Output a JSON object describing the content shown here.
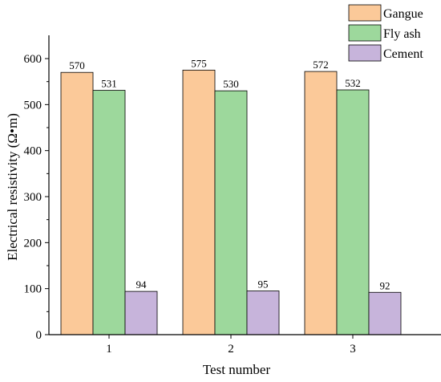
{
  "chart_data": {
    "type": "bar",
    "categories": [
      "1",
      "2",
      "3"
    ],
    "series": [
      {
        "name": "Gangue",
        "values": [
          570,
          575,
          572
        ],
        "color": "#FBC999"
      },
      {
        "name": "Fly ash",
        "values": [
          531,
          530,
          532
        ],
        "color": "#9DD89C"
      },
      {
        "name": "Cement",
        "values": [
          94,
          95,
          92
        ],
        "color": "#C7B4DB"
      }
    ],
    "xlabel": "Test number",
    "ylabel": "Electrical resistivity (Ω•m)",
    "ylim": [
      0,
      650
    ],
    "yticks": [
      0,
      100,
      200,
      300,
      400,
      500,
      600
    ],
    "legend_position": "top-right",
    "grid": false
  }
}
